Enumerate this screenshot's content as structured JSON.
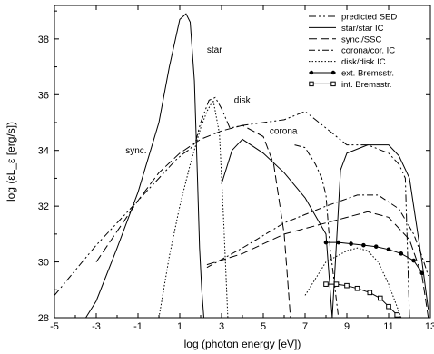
{
  "chart_data": {
    "type": "line",
    "xlabel": "log (photon energy [eV])",
    "ylabel": "log (εL_ε [erg/s])",
    "xlim": [
      -5,
      13
    ],
    "ylim": [
      28,
      39.2
    ],
    "x_ticks": [
      "-5",
      "-3",
      "-1",
      "1",
      "3",
      "5",
      "7",
      "9",
      "11",
      "13"
    ],
    "y_ticks": [
      "28",
      "30",
      "32",
      "34",
      "36",
      "38"
    ],
    "legend_position": "top-right",
    "legend": [
      {
        "label": "predicted SED",
        "style": "dashdotdot",
        "color": "#000000"
      },
      {
        "label": "star/star IC",
        "style": "solid",
        "color": "#000000"
      },
      {
        "label": "sync./SSC",
        "style": "longdash",
        "color": "#000000"
      },
      {
        "label": "corona/cor. IC",
        "style": "dashdot",
        "color": "#000000"
      },
      {
        "label": "disk/disk IC",
        "style": "dotted",
        "color": "#000000"
      },
      {
        "label": "ext. Bremsstr.",
        "style": "filled-circle",
        "color": "#000000"
      },
      {
        "label": "int. Bremsstr.",
        "style": "open-square",
        "color": "#000000"
      }
    ],
    "annotations": [
      {
        "text": "star",
        "x": 2.3,
        "y": 37.5
      },
      {
        "text": "disk",
        "x": 3.6,
        "y": 35.7
      },
      {
        "text": "corona",
        "x": 5.3,
        "y": 34.6
      },
      {
        "text": "sync.",
        "x": -1.6,
        "y": 33.9
      }
    ],
    "series": [
      {
        "name": "predicted SED",
        "style": "dashdotdot",
        "x": [
          -5,
          -3,
          -1,
          0,
          0.8,
          1.2,
          1.5,
          1.75,
          2,
          2.4,
          2.7,
          3,
          3.4,
          4,
          5,
          6,
          7,
          8,
          9,
          10,
          11,
          11.5,
          11.8,
          12
        ],
        "y": [
          28.8,
          30.6,
          32.2,
          33,
          33.65,
          33.9,
          34.05,
          34.3,
          35,
          35.8,
          35.9,
          35.5,
          34.8,
          34.9,
          35,
          35.1,
          35.4,
          34.8,
          34.2,
          34.2,
          33.9,
          33.5,
          33,
          28
        ]
      },
      {
        "name": "star",
        "style": "solid",
        "x": [
          -5,
          -3.5,
          -3,
          -2,
          -1,
          0,
          0.5,
          1,
          1.3,
          1.5,
          1.7,
          1.85,
          1.95,
          2.05,
          2.15
        ],
        "y": [
          28,
          28,
          28.6,
          30.5,
          32.5,
          35,
          37,
          38.7,
          38.9,
          38.6,
          36.5,
          33,
          30.5,
          29,
          28
        ]
      },
      {
        "name": "star IC",
        "style": "solid",
        "x": [
          3,
          3.5,
          4,
          5,
          6,
          7,
          8,
          8.3,
          8.7,
          9,
          10,
          11,
          11.5,
          12,
          12.3,
          12.6,
          12.9
        ],
        "y": [
          32.8,
          34,
          34.4,
          33.9,
          33.2,
          32.3,
          31,
          28,
          33.3,
          33.9,
          34.2,
          34.2,
          33.8,
          33,
          31.5,
          30,
          28.3
        ]
      },
      {
        "name": "sync.",
        "style": "longdash",
        "x": [
          -3,
          -1,
          0,
          1,
          2,
          3,
          4,
          5,
          5.5,
          6,
          6.3
        ],
        "y": [
          30,
          32.2,
          33.2,
          33.9,
          34.4,
          34.7,
          34.9,
          34.5,
          33.5,
          31,
          28
        ]
      },
      {
        "name": "SSC",
        "style": "longdash",
        "x": [
          2.3,
          4,
          6,
          8,
          10,
          11,
          12,
          12.6,
          12.9
        ],
        "y": [
          29.9,
          30.3,
          31,
          31.4,
          31.8,
          31.6,
          30.8,
          29.5,
          28
        ]
      },
      {
        "name": "corona",
        "style": "dashdot",
        "x": [
          6.5,
          7,
          7.5,
          7.8,
          8,
          8.2,
          8.6
        ],
        "y": [
          34.2,
          34.1,
          33.5,
          33,
          32.4,
          30.5,
          28
        ]
      },
      {
        "name": "corona IC",
        "style": "dashdot",
        "x": [
          2.3,
          4,
          6,
          8,
          9.5,
          10.5,
          11.5,
          12.2,
          12.6,
          12.9
        ],
        "y": [
          29.8,
          30.5,
          31.4,
          32,
          32.4,
          32.4,
          31.9,
          31,
          30.2,
          29.5
        ]
      },
      {
        "name": "disk",
        "style": "dotted",
        "x": [
          0,
          0.5,
          1,
          1.5,
          2,
          2.3,
          2.6,
          2.9,
          3.1,
          3.3
        ],
        "y": [
          28,
          30.2,
          32,
          33.5,
          34.8,
          35.4,
          35.8,
          34.6,
          31.5,
          28
        ]
      },
      {
        "name": "disk IC",
        "style": "dotted",
        "x": [
          7,
          8,
          9,
          9.5,
          10,
          10.5,
          11,
          11.3,
          11.6
        ],
        "y": [
          28.8,
          30,
          30.4,
          30.5,
          30.4,
          30,
          29.2,
          28.6,
          28
        ]
      },
      {
        "name": "ext. Bremsstr.",
        "style": "filled-circle",
        "x": [
          8,
          8.6,
          9.2,
          9.8,
          10.4,
          11,
          11.6,
          12.2,
          12.6
        ],
        "y": [
          30.7,
          30.7,
          30.65,
          30.6,
          30.55,
          30.45,
          30.3,
          30.05,
          29.6
        ]
      },
      {
        "name": "int. Bremsstr.",
        "style": "open-square",
        "x": [
          8,
          8.5,
          9,
          9.5,
          10.1,
          10.6,
          11,
          11.4,
          11.8
        ],
        "y": [
          29.2,
          29.2,
          29.15,
          29.05,
          28.9,
          28.7,
          28.4,
          28.1,
          27.9
        ]
      }
    ]
  }
}
